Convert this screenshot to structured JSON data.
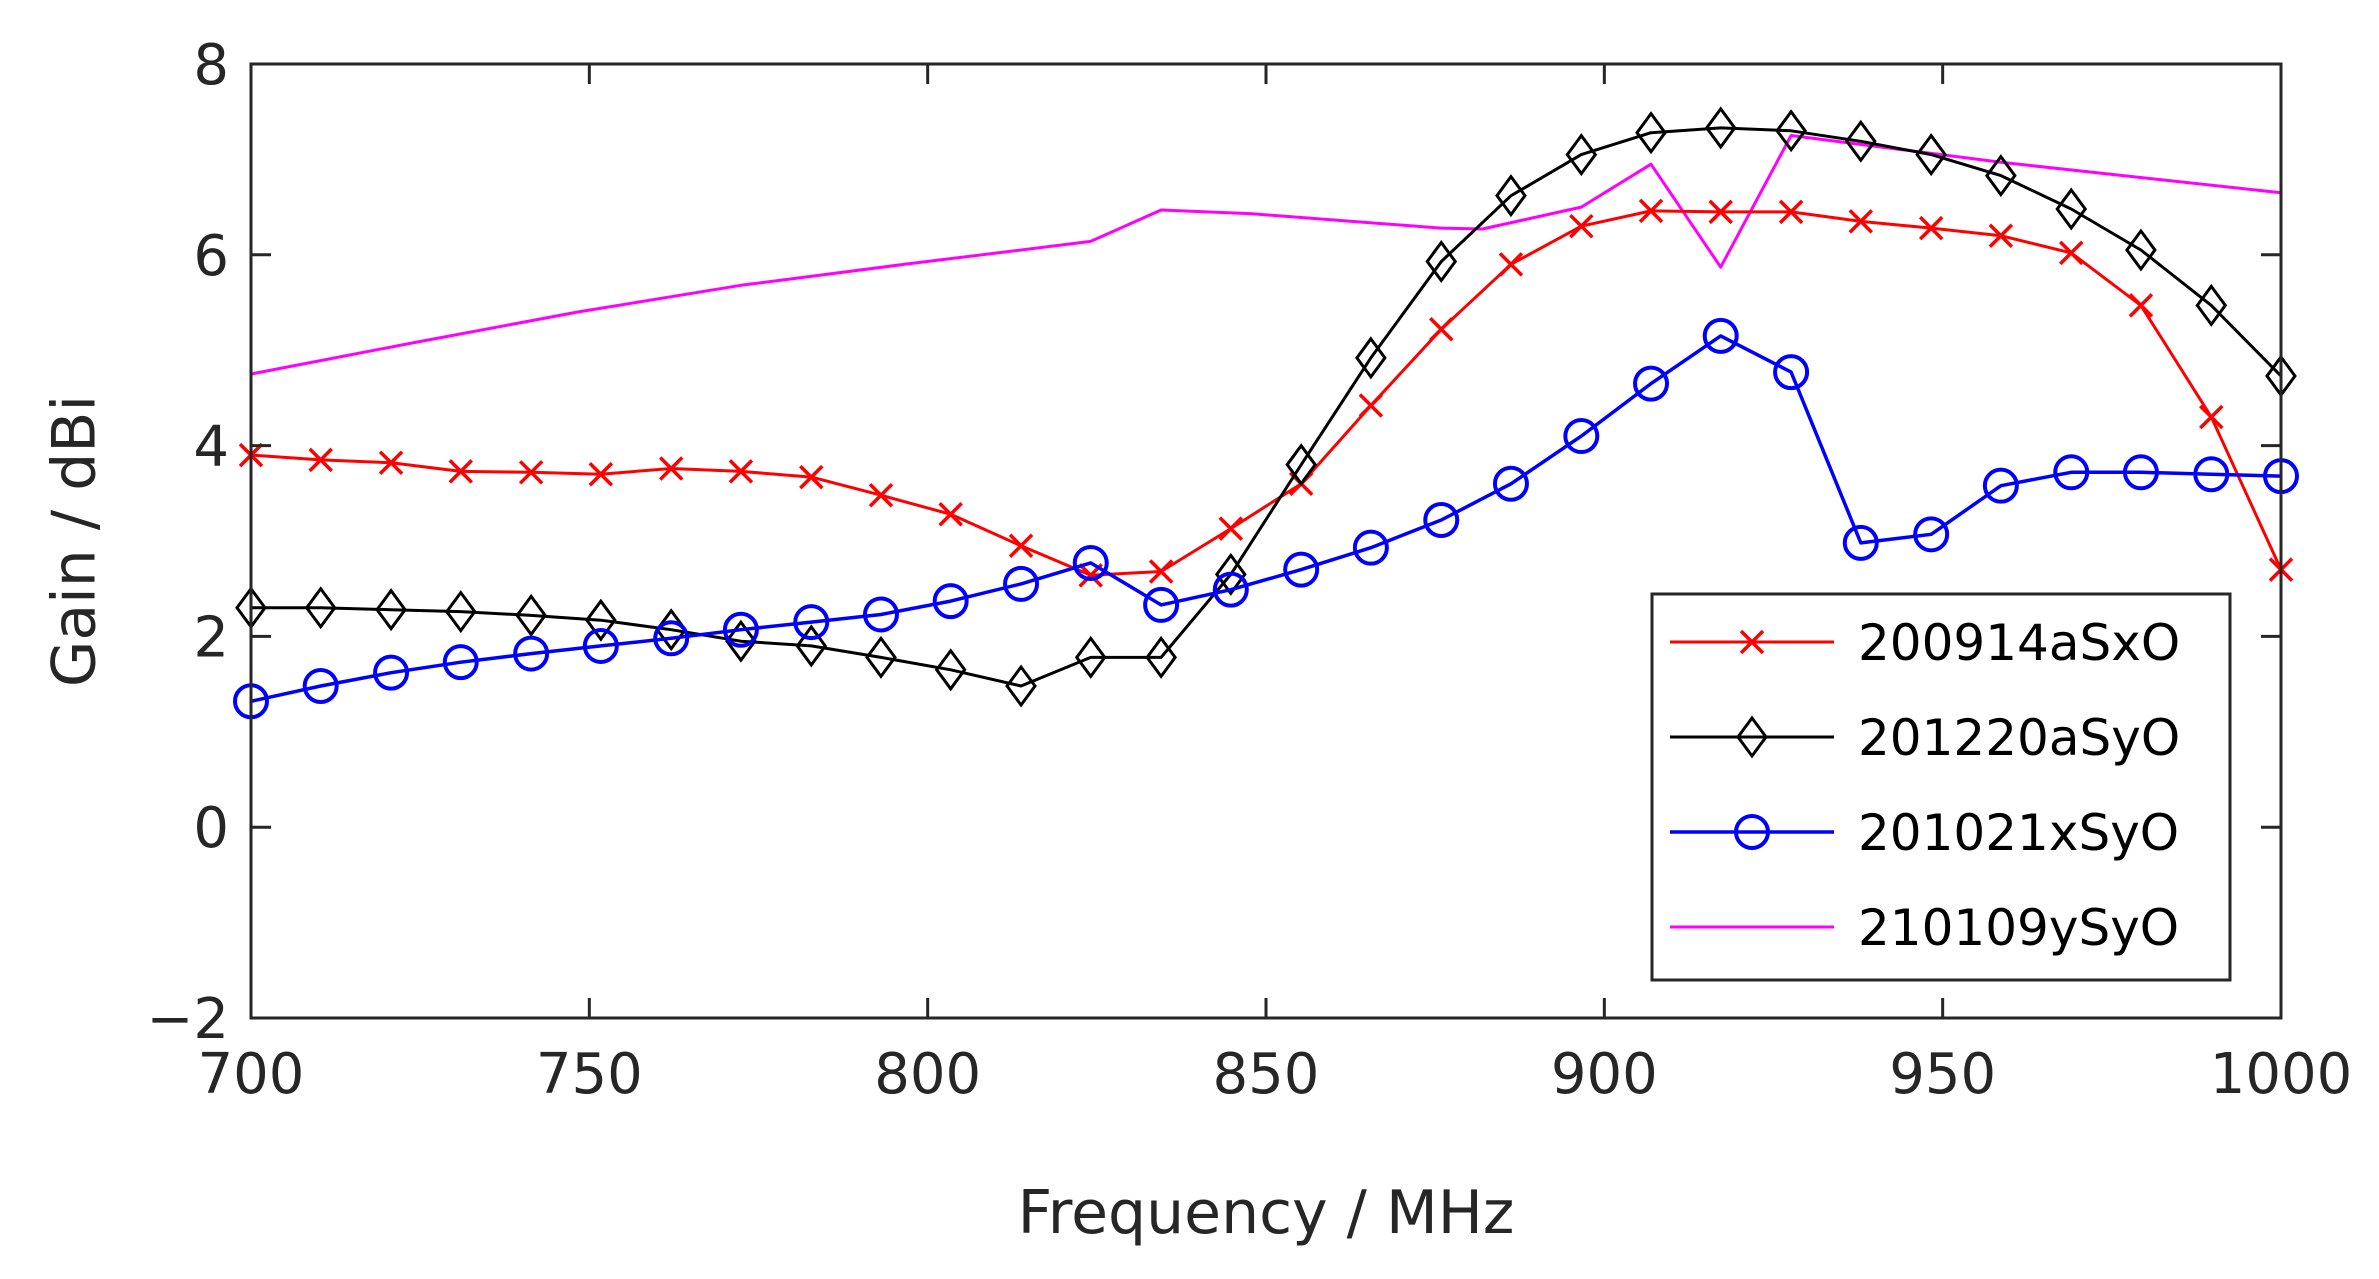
{
  "chart_data": {
    "type": "line",
    "title": "",
    "xlabel": "Frequency / MHz",
    "ylabel": "Gain / dBi",
    "xlim": [
      700,
      1000
    ],
    "ylim": [
      -2,
      8
    ],
    "xticks": [
      700,
      750,
      800,
      850,
      900,
      950,
      1000
    ],
    "yticks": [
      -2,
      0,
      2,
      4,
      6,
      8
    ],
    "ytick_labels": [
      "−2",
      "0",
      "2",
      "4",
      "6",
      "8"
    ],
    "grid": false,
    "legend_position": "bottom-right",
    "series": [
      {
        "name": "200914aSxO",
        "color": "#ff0000",
        "marker": "x",
        "x": [
          700,
          710.3,
          720.7,
          731,
          741.4,
          751.7,
          762.1,
          772.4,
          782.8,
          793.1,
          803.4,
          813.8,
          824.1,
          834.5,
          844.8,
          855.2,
          865.5,
          875.9,
          886.2,
          896.6,
          906.9,
          917.2,
          927.6,
          937.9,
          948.3,
          958.6,
          969,
          979.3,
          989.7,
          1000
        ],
        "y": [
          3.9,
          3.85,
          3.82,
          3.73,
          3.72,
          3.7,
          3.76,
          3.73,
          3.67,
          3.48,
          3.28,
          2.95,
          2.64,
          2.68,
          3.13,
          3.6,
          4.42,
          5.22,
          5.9,
          6.3,
          6.46,
          6.45,
          6.45,
          6.35,
          6.28,
          6.2,
          6.02,
          5.47,
          4.3,
          2.7
        ]
      },
      {
        "name": "201220aSyO",
        "color": "#000000",
        "marker": "diamond",
        "x": [
          700,
          710.3,
          720.7,
          731,
          741.4,
          751.7,
          762.1,
          772.4,
          782.8,
          793.1,
          803.4,
          813.8,
          824.1,
          834.5,
          844.8,
          855.2,
          865.5,
          875.9,
          886.2,
          896.6,
          906.9,
          917.2,
          927.6,
          937.9,
          948.3,
          958.6,
          969,
          979.3,
          989.7,
          1000
        ],
        "y": [
          2.3,
          2.3,
          2.28,
          2.26,
          2.22,
          2.17,
          2.07,
          1.95,
          1.9,
          1.78,
          1.65,
          1.48,
          1.78,
          1.78,
          2.65,
          3.8,
          4.92,
          5.93,
          6.62,
          7.05,
          7.28,
          7.33,
          7.3,
          7.19,
          7.05,
          6.83,
          6.48,
          6.05,
          5.47,
          4.73
        ]
      },
      {
        "name": "201021xSyO",
        "color": "#0000ff",
        "marker": "circle",
        "x": [
          700,
          710.3,
          720.7,
          731,
          741.4,
          751.7,
          762.1,
          772.4,
          782.8,
          793.1,
          803.4,
          813.8,
          824.1,
          834.5,
          844.8,
          855.2,
          865.5,
          875.9,
          886.2,
          896.6,
          906.9,
          917.2,
          927.6,
          937.9,
          948.3,
          958.6,
          969,
          979.3,
          989.7,
          1000
        ],
        "y": [
          1.32,
          1.48,
          1.62,
          1.73,
          1.82,
          1.9,
          1.98,
          2.07,
          2.15,
          2.23,
          2.37,
          2.55,
          2.77,
          2.33,
          2.49,
          2.7,
          2.93,
          3.22,
          3.6,
          4.1,
          4.65,
          5.15,
          4.77,
          2.98,
          3.07,
          3.58,
          3.72,
          3.72,
          3.7,
          3.68
        ]
      },
      {
        "name": "210109ySyO",
        "color": "#ff00ff",
        "marker": "none",
        "x": [
          700,
          724.1,
          748.3,
          772.4,
          796.6,
          824.1,
          834.5,
          848,
          875.9,
          882,
          896.6,
          906.9,
          917.2,
          927.6,
          958.6,
          1000
        ],
        "y": [
          4.75,
          5.08,
          5.4,
          5.68,
          5.9,
          6.14,
          6.47,
          6.43,
          6.28,
          6.27,
          6.5,
          6.95,
          5.87,
          7.25,
          6.97,
          6.65
        ]
      }
    ]
  }
}
